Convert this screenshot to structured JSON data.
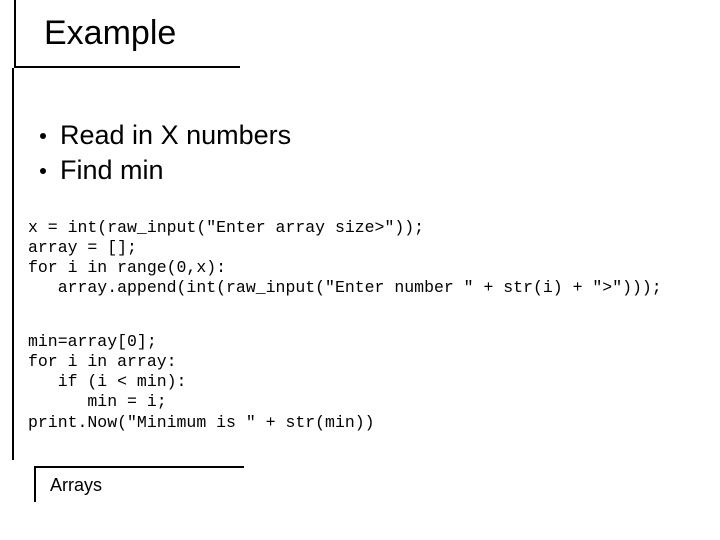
{
  "title": "Example",
  "bullets": [
    "Read in X numbers",
    "Find min"
  ],
  "code1": "x = int(raw_input(\"Enter array size>\"));\narray = [];\nfor i in range(0,x):\n   array.append(int(raw_input(\"Enter number \" + str(i) + \">\")));",
  "code2": "min=array[0];\nfor i in array:\n   if (i < min):\n      min = i;\nprint.Now(\"Minimum is \" + str(min))",
  "footer": "Arrays",
  "colors": {
    "background": "#ffffff",
    "text": "#000000",
    "rule": "#000000"
  },
  "fonts": {
    "title_size": 34,
    "bullet_size": 27,
    "code_size": 16.5,
    "footer_size": 18,
    "code_family": "Courier New"
  }
}
